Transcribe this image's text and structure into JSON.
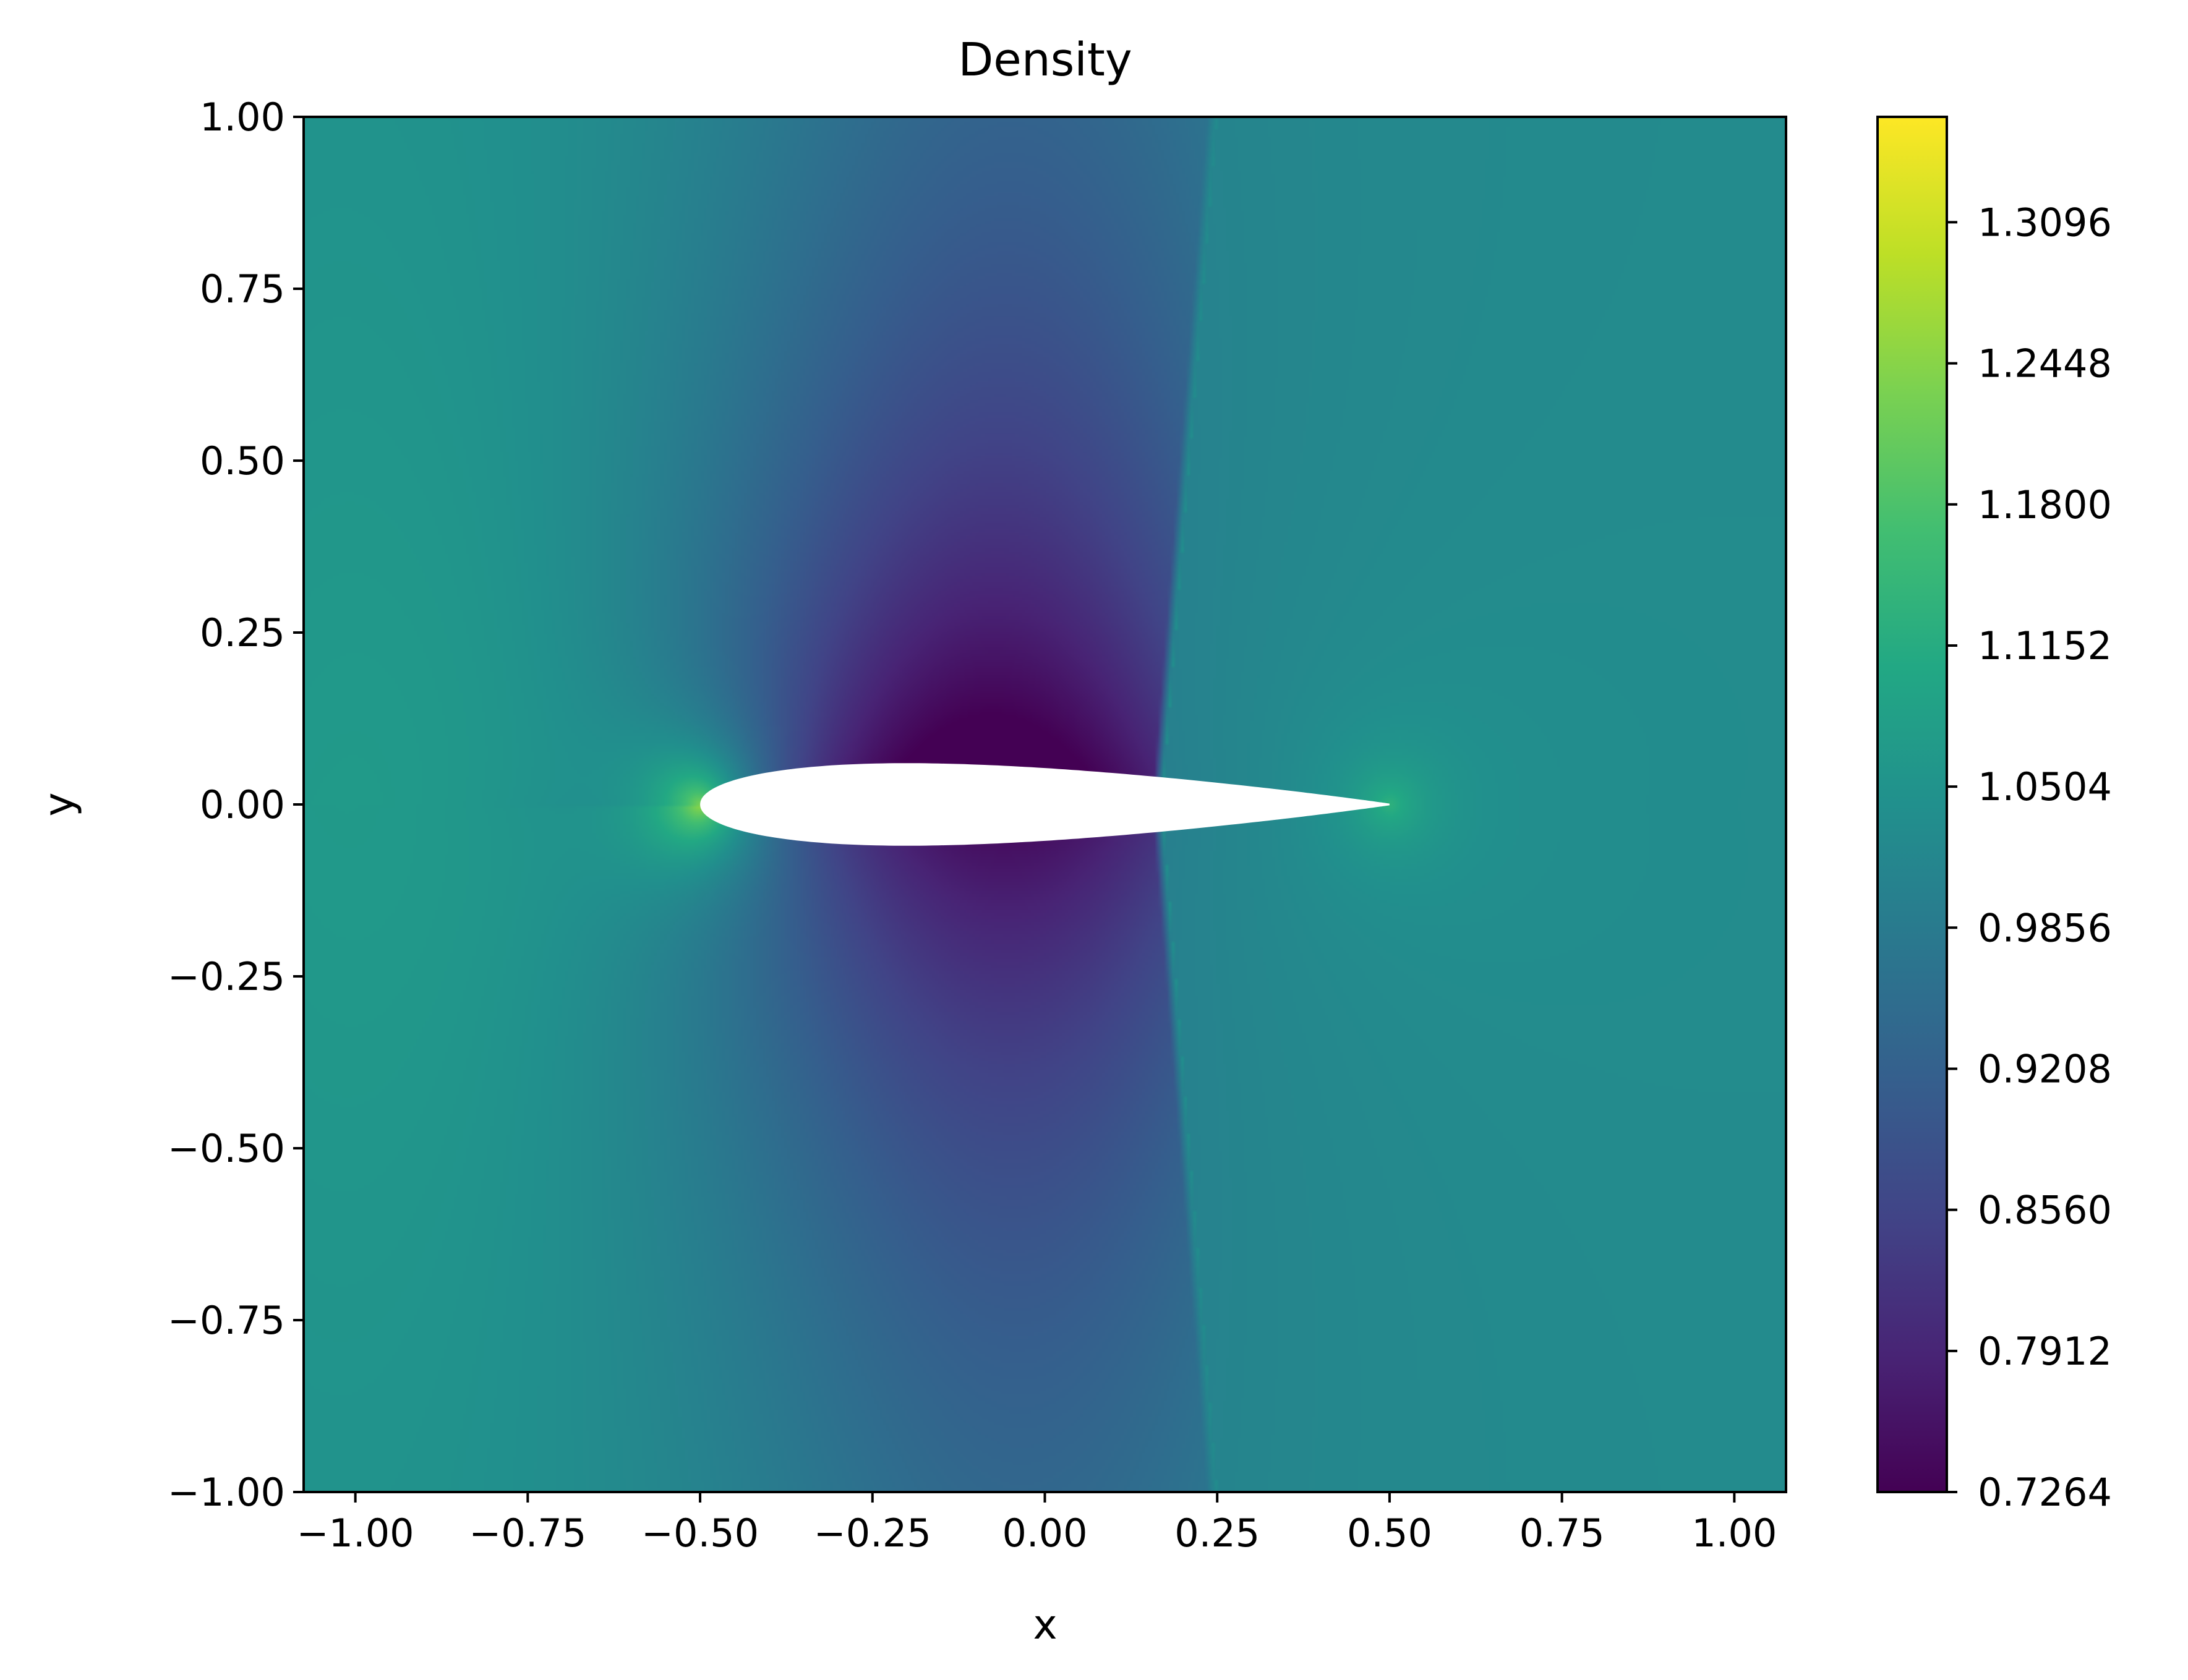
{
  "chart_data": {
    "type": "heatmap",
    "title": "Density",
    "xlabel": "x",
    "ylabel": "y",
    "xlim": [
      -1.075,
      1.075
    ],
    "ylim": [
      -1.0,
      1.0
    ],
    "xticks": [
      -1.0,
      -0.75,
      -0.5,
      -0.25,
      0.0,
      0.25,
      0.5,
      0.75,
      1.0
    ],
    "xtick_labels": [
      "−1.00",
      "−0.75",
      "−0.50",
      "−0.25",
      "0.00",
      "0.25",
      "0.50",
      "0.75",
      "1.00"
    ],
    "yticks": [
      1.0,
      0.75,
      0.5,
      0.25,
      0.0,
      -0.25,
      -0.5,
      -0.75,
      -1.0
    ],
    "ytick_labels": [
      "1.00",
      "0.75",
      "0.50",
      "0.25",
      "0.00",
      "−0.25",
      "−0.50",
      "−0.75",
      "−1.00"
    ],
    "colormap": "viridis",
    "colorbar": {
      "min": 0.7264,
      "max": 1.358,
      "ticks": [
        0.7264,
        0.7912,
        0.856,
        0.9208,
        0.9856,
        1.0504,
        1.1152,
        1.18,
        1.2448,
        1.3096
      ],
      "tick_labels": [
        "0.7264",
        "0.7912",
        "0.8560",
        "0.9208",
        "0.9856",
        "1.0504",
        "1.1152",
        "1.1800",
        "1.2448",
        "1.3096"
      ]
    },
    "airfoil": {
      "leading_edge_x": -0.5,
      "trailing_edge_x": 0.5,
      "max_half_thickness": 0.06
    },
    "field_features": {
      "freestream_density": 1.03,
      "stagnation_density_leading_edge": 1.33,
      "trailing_edge_density": 1.12,
      "min_density_upper_surface": 0.7264,
      "lower_surface_density": 0.8,
      "shock_x_at_surface": 0.17,
      "shock_x_at_top": 0.25
    },
    "grid": false
  }
}
